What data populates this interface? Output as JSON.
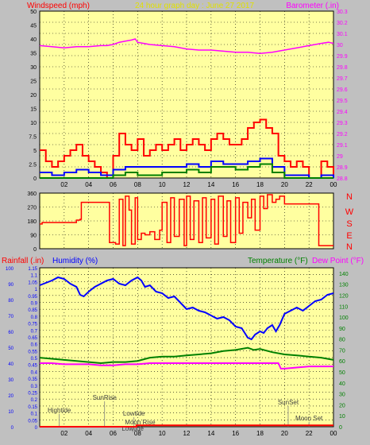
{
  "header": {
    "left_title": "Windspeed (mph)",
    "center_title": "24 hour graph day : June 27 2017",
    "right_title": "Barometer (.in)"
  },
  "colors": {
    "plot_bg": "#ffffa0",
    "frame_bg": "#c0c0c0",
    "wind_title": "#ff0000",
    "center_title": "#e0e000",
    "baro": "#ff00ff",
    "rain_title": "#ff0000",
    "humidity": "#0000ff",
    "temperature": "#008000",
    "dewpoint": "#ff00ff",
    "direction": "#ff0000",
    "wind_avg": "#0000ff",
    "wind_low": "#008000"
  },
  "x_ticks": [
    "02",
    "04",
    "06",
    "08",
    "10",
    "12",
    "14",
    "16",
    "18",
    "20",
    "22",
    "00"
  ],
  "chart_data": [
    {
      "id": "wind-baro",
      "type": "line",
      "title": "24 hour graph day : June 27 2017",
      "ylabel_left": "Windspeed (mph)",
      "ylabel_right": "Barometer (.in)",
      "ylim_left": [
        0,
        50
      ],
      "ylim_right": [
        28.8,
        30.3
      ],
      "yticks_left": [
        "0",
        "2.5",
        "5",
        "7.5",
        "10",
        "15",
        "20",
        "25",
        "30",
        "35",
        "40",
        "45",
        "50"
      ],
      "yticks_right": [
        "28.8",
        "28.9",
        "29",
        "29.1",
        "29.2",
        "29.3",
        "29.4",
        "29.5",
        "29.6",
        "29.7",
        "29.8",
        "29.9",
        "30",
        "30.1",
        "30.2",
        "30.3"
      ],
      "series": [
        {
          "name": "Barometer",
          "axis": "right",
          "x": [
            0,
            1,
            2,
            3,
            4,
            5,
            5.5,
            6,
            6.5,
            7,
            7.5,
            7.8,
            8,
            8.5,
            9,
            10,
            11,
            12,
            13,
            14,
            15,
            16,
            17,
            18,
            19,
            19.5,
            20,
            21,
            22,
            23,
            23.6,
            24
          ],
          "y": [
            29.99,
            29.98,
            29.97,
            29.98,
            29.98,
            29.99,
            29.99,
            30.0,
            30.02,
            30.03,
            30.04,
            30.05,
            30.02,
            30.01,
            30.0,
            29.99,
            29.98,
            29.96,
            29.95,
            29.95,
            29.94,
            29.93,
            29.93,
            29.92,
            29.93,
            29.94,
            29.95,
            29.97,
            29.99,
            30.01,
            30.02,
            30.01
          ]
        },
        {
          "name": "Wind gust",
          "axis": "left",
          "x": [
            0,
            0.5,
            1,
            1.5,
            2,
            2.5,
            3,
            3.5,
            4,
            4.5,
            5,
            5.5,
            6,
            6.5,
            7,
            7.5,
            8,
            8.5,
            9,
            9.5,
            10,
            10.5,
            11,
            11.5,
            12,
            12.5,
            13,
            13.5,
            14,
            14.5,
            15,
            15.5,
            16,
            16.5,
            17,
            17.5,
            18,
            18.5,
            19,
            19.5,
            20,
            20.5,
            21,
            21.5,
            22,
            22.5,
            23,
            23.5,
            24
          ],
          "y": [
            5,
            3,
            2,
            3,
            4,
            5,
            6,
            4,
            3,
            2,
            1,
            0,
            4,
            8,
            6,
            5,
            7,
            4,
            5,
            6,
            5,
            6,
            7,
            5,
            6,
            7,
            6,
            5,
            7,
            8,
            7,
            6,
            6,
            7,
            9,
            10,
            11,
            9,
            8,
            4,
            3,
            2,
            3,
            2,
            0,
            0,
            3,
            2,
            0
          ]
        },
        {
          "name": "Wind average",
          "axis": "left",
          "x": [
            0,
            1,
            2,
            3,
            4,
            5,
            6,
            7,
            8,
            9,
            10,
            11,
            12,
            13,
            14,
            15,
            16,
            17,
            18,
            19,
            20,
            21,
            22,
            23,
            24
          ],
          "y": [
            1,
            0.5,
            1,
            1.5,
            1,
            0.5,
            1.5,
            2,
            2,
            2,
            2,
            2,
            2.5,
            2,
            3,
            2.5,
            2.5,
            3,
            3.5,
            2,
            0.5,
            0.5,
            0,
            0.5,
            0
          ]
        },
        {
          "name": "Wind low",
          "axis": "left",
          "x": [
            0,
            2,
            4,
            6,
            7,
            8,
            10,
            12,
            13,
            14,
            16,
            17,
            18,
            19,
            20,
            22,
            24
          ],
          "y": [
            0,
            0,
            0,
            0.5,
            1,
            0.5,
            1,
            1.5,
            1,
            2,
            1.5,
            2,
            2.5,
            1,
            0,
            0,
            0
          ]
        }
      ]
    },
    {
      "id": "wind-direction",
      "type": "line",
      "ylim": [
        0,
        360
      ],
      "yticks": [
        "0",
        "90",
        "180",
        "270",
        "360"
      ],
      "compass_labels": [
        "N",
        "W",
        "S",
        "E",
        "N"
      ],
      "series": [
        {
          "name": "Wind direction",
          "x": [
            0,
            0.2,
            1,
            2,
            3,
            3.3,
            3.4,
            4.5,
            5,
            5.6,
            5.7,
            6.2,
            6.5,
            6.8,
            7,
            7.3,
            7.5,
            7.8,
            8,
            8.3,
            8.6,
            9,
            9.4,
            9.8,
            10,
            10.4,
            10.7,
            11,
            11.4,
            11.8,
            12,
            12.3,
            12.6,
            13,
            13.3,
            13.6,
            14,
            14.3,
            14.6,
            15,
            15.3,
            15.6,
            16,
            16.3,
            16.6,
            17,
            17.3,
            17.6,
            18,
            18.3,
            18.6,
            19,
            19.3,
            19.6,
            20,
            21,
            22,
            22.7,
            22.8,
            24
          ],
          "y": [
            160,
            170,
            170,
            170,
            185,
            190,
            300,
            300,
            300,
            300,
            40,
            30,
            320,
            20,
            340,
            250,
            30,
            330,
            60,
            100,
            90,
            110,
            60,
            120,
            300,
            40,
            330,
            80,
            320,
            20,
            340,
            60,
            310,
            40,
            330,
            70,
            320,
            30,
            340,
            80,
            310,
            40,
            330,
            100,
            300,
            200,
            320,
            120,
            340,
            260,
            350,
            300,
            320,
            340,
            290,
            290,
            290,
            290,
            20,
            20
          ]
        }
      ]
    },
    {
      "id": "temp-hum",
      "type": "line",
      "ylabel_left_1": "Rainfall (.in)",
      "ylabel_left_2": "Humidity (%)",
      "ylabel_right_1": "Temperature (°F)",
      "ylabel_right_2": "Dew Point (°F)",
      "ylim_rain": [
        0,
        1.15
      ],
      "ylim_humidity": [
        0,
        100
      ],
      "ylim_temp": [
        0,
        145
      ],
      "yticks_rain": [
        "0",
        "0.05",
        "0.1",
        "0.15",
        "0.2",
        "0.25",
        "0.3",
        "0.35",
        "0.4",
        "0.45",
        "0.5",
        "0.55",
        "0.6",
        "0.65",
        "0.7",
        "0.75",
        "0.8",
        "0.85",
        "0.9",
        "0.95",
        "1",
        "1.05",
        "1.1",
        "1.15"
      ],
      "yticks_humidity": [
        "0",
        "10",
        "20",
        "30",
        "40",
        "50",
        "60",
        "70",
        "80",
        "90",
        "100"
      ],
      "yticks_temp": [
        "0",
        "10",
        "20",
        "30",
        "40",
        "50",
        "60",
        "70",
        "80",
        "90",
        "100",
        "110",
        "120",
        "130",
        "140"
      ],
      "annotations": [
        {
          "label": "Hightide",
          "x": 1.6
        },
        {
          "label": "SunRise",
          "x": 5.3
        },
        {
          "label": "Lowtide",
          "x": 7.7
        },
        {
          "label": "Moon Rise",
          "x": 8.2
        },
        {
          "label": "Lowtide",
          "x": 7.6
        },
        {
          "label": "SunSet",
          "x": 20.3
        },
        {
          "label": "Moon Set",
          "x": 22.0
        }
      ],
      "series": [
        {
          "name": "Humidity",
          "axis": "humidity",
          "x": [
            0,
            1,
            1.5,
            2,
            2.5,
            3,
            3.3,
            3.6,
            4,
            4.5,
            5,
            5.5,
            6,
            6.5,
            7,
            7.5,
            8,
            8.3,
            8.6,
            9,
            9.5,
            10,
            10.5,
            11,
            11.5,
            12,
            12.5,
            13,
            13.5,
            14,
            14.5,
            15,
            15.5,
            16,
            16.5,
            17,
            17.3,
            17.6,
            18,
            18.3,
            18.6,
            19,
            19.3,
            19.6,
            20,
            20.5,
            21,
            21.5,
            22,
            22.5,
            23,
            23.5,
            24
          ],
          "y": [
            89,
            92,
            94,
            93,
            90,
            88,
            83,
            82,
            85,
            88,
            90,
            92,
            93,
            90,
            89,
            92,
            94,
            92,
            88,
            89,
            85,
            84,
            81,
            82,
            78,
            74,
            75,
            73,
            72,
            70,
            68,
            69,
            67,
            63,
            62,
            56,
            55,
            58,
            60,
            59,
            62,
            64,
            60,
            64,
            71,
            73,
            75,
            73,
            76,
            79,
            80,
            83,
            84
          ]
        },
        {
          "name": "Temperature",
          "axis": "temp",
          "x": [
            0,
            1,
            2,
            3,
            4,
            5,
            6,
            7,
            8,
            9,
            10,
            11,
            12,
            13,
            14,
            15,
            16,
            17,
            17.5,
            18,
            19,
            20,
            21,
            22,
            23,
            24
          ],
          "y": [
            63,
            62,
            61,
            60,
            59,
            58,
            59,
            59,
            60,
            63,
            64,
            64,
            65,
            66,
            67,
            69,
            70,
            72,
            70,
            71,
            68,
            66,
            65,
            64,
            63,
            61
          ]
        },
        {
          "name": "Dew Point",
          "axis": "temp",
          "x": [
            0,
            1,
            2,
            3,
            4,
            5,
            6,
            7,
            8,
            9,
            10,
            11,
            12,
            13,
            14,
            15,
            16,
            17,
            18,
            19,
            19.5,
            19.7,
            20,
            21,
            22,
            23,
            24
          ],
          "y": [
            58,
            58,
            57,
            57,
            57,
            56,
            56,
            57,
            57,
            58,
            58,
            58,
            58,
            58,
            58,
            58,
            58,
            58,
            58,
            58,
            58,
            53,
            53,
            54,
            55,
            55,
            55
          ]
        },
        {
          "name": "Rainfall",
          "axis": "rain",
          "x": [
            0,
            7.8,
            7.9,
            24
          ],
          "y": [
            0,
            0,
            0.01,
            0.01
          ]
        }
      ]
    }
  ]
}
